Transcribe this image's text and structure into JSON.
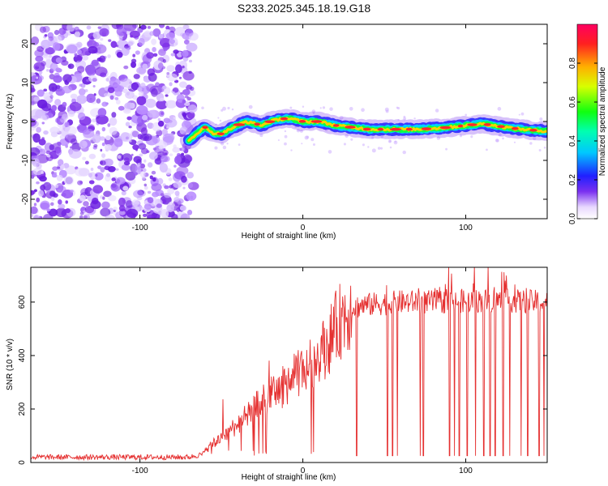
{
  "title": "S233.2025.345.18.19.G18",
  "colors": {
    "accent": "#e53030",
    "noise": "#8a3cf0",
    "frame": "#000000"
  },
  "chart_data": [
    {
      "type": "heatmap",
      "xlabel": "Height of straight line (km)",
      "ylabel": "Frequency (Hz)",
      "xlim": [
        -167,
        150
      ],
      "ylim": [
        -25,
        25
      ],
      "xticks": [
        -100,
        0,
        100
      ],
      "yticks": [
        -20,
        -10,
        0,
        10,
        20
      ],
      "colorbar": {
        "label": "Normalized spectral amplitude",
        "range": [
          0,
          1
        ],
        "ticks": [
          "0.0",
          "0.2",
          "0.4",
          "0.6",
          "0.8"
        ],
        "tick_values": [
          0,
          0.2,
          0.4,
          0.6,
          0.8
        ]
      },
      "noise_region_x": [
        -167,
        -67
      ],
      "ridge": {
        "x": [
          -70,
          -65,
          -60,
          -55,
          -50,
          -45,
          -40,
          -35,
          -30,
          -25,
          -20,
          -15,
          -10,
          -5,
          0,
          10,
          20,
          30,
          40,
          50,
          60,
          70,
          80,
          90,
          100,
          110,
          120,
          130,
          140,
          150
        ],
        "hz": [
          -5,
          -3,
          -1.5,
          -3,
          -3.2,
          -2,
          -1,
          0,
          -0.5,
          -1,
          0,
          0.5,
          0.8,
          0.5,
          0,
          0,
          -1,
          -1.5,
          -2,
          -2,
          -2,
          -2,
          -1.8,
          -1.5,
          -1,
          -0.6,
          -1.2,
          -1.8,
          -2.2,
          -2.5
        ]
      }
    },
    {
      "type": "line",
      "xlabel": "Height of straight line (km)",
      "ylabel": "SNR (10 * v/v)",
      "xlim": [
        -167,
        150
      ],
      "ylim": [
        0,
        730
      ],
      "xticks": [
        -100,
        0,
        100
      ],
      "yticks": [
        0,
        200,
        400,
        600
      ],
      "series": [
        {
          "name": "SNR",
          "trend_x": [
            -167,
            -70,
            -62,
            -55,
            -45,
            -35,
            -25,
            -15,
            -5,
            5,
            15,
            20,
            25,
            30,
            40,
            50,
            60,
            80,
            100,
            120,
            150
          ],
          "trend_y": [
            20,
            20,
            30,
            70,
            120,
            170,
            230,
            270,
            320,
            370,
            440,
            500,
            550,
            580,
            590,
            595,
            600,
            600,
            605,
            605,
            600
          ],
          "dropouts_x": [
            33,
            52,
            55,
            58,
            72,
            74,
            90,
            93,
            96,
            101,
            106,
            111,
            115,
            118,
            123,
            127,
            134,
            138,
            145,
            148
          ],
          "dropout_floor": 25
        }
      ]
    }
  ]
}
